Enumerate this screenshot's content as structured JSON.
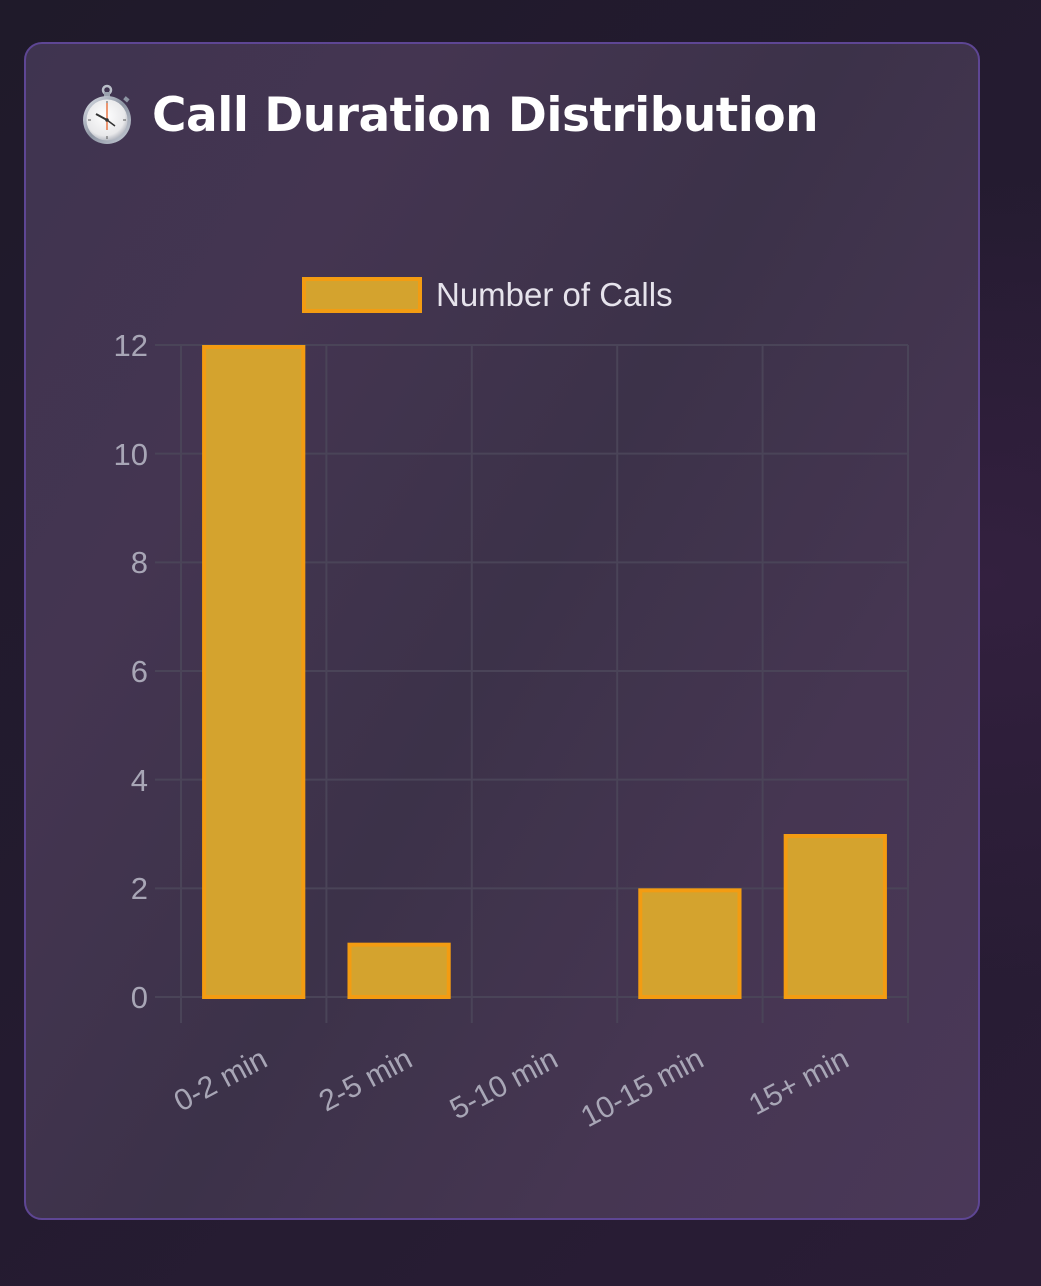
{
  "card": {
    "icon": "stopwatch-icon",
    "title": "Call Duration Distribution"
  },
  "colors": {
    "bar_fill": "#d4a32e",
    "bar_border": "#f39c12",
    "card_border": "#5e4694",
    "grid": "#4a4458",
    "tick_text": "#a8a6b6"
  },
  "legend": {
    "items": [
      {
        "label": "Number of Calls"
      }
    ]
  },
  "y_ticks": [
    "0",
    "2",
    "4",
    "6",
    "8",
    "10",
    "12"
  ],
  "x_ticks": [
    "0-2 min",
    "2-5 min",
    "5-10 min",
    "10-15 min",
    "15+ min"
  ],
  "chart_data": {
    "type": "bar",
    "title": "Call Duration Distribution",
    "categories": [
      "0-2 min",
      "2-5 min",
      "5-10 min",
      "10-15 min",
      "15+ min"
    ],
    "series": [
      {
        "name": "Number of Calls",
        "values": [
          12,
          1,
          0,
          2,
          3
        ]
      }
    ],
    "xlabel": "",
    "ylabel": "",
    "ylim": [
      0,
      12
    ],
    "yticks": [
      0,
      2,
      4,
      6,
      8,
      10,
      12
    ],
    "grid": true,
    "legend_position": "top"
  }
}
